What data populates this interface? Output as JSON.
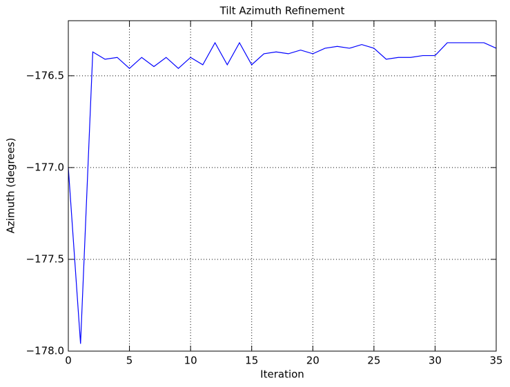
{
  "chart_data": {
    "type": "line",
    "title": "Tilt Azimuth Refinement",
    "xlabel": "Iteration",
    "ylabel": "Azimuth (degrees)",
    "x": [
      0,
      1,
      2,
      3,
      4,
      5,
      6,
      7,
      8,
      9,
      10,
      11,
      12,
      13,
      14,
      15,
      16,
      17,
      18,
      19,
      20,
      21,
      22,
      23,
      24,
      25,
      26,
      27,
      28,
      29,
      30,
      31,
      32,
      33,
      34,
      35
    ],
    "series": [
      {
        "name": "Azimuth",
        "color": "#0000ff",
        "values": [
          -177.0,
          -177.96,
          -176.37,
          -176.41,
          -176.4,
          -176.46,
          -176.4,
          -176.45,
          -176.4,
          -176.46,
          -176.4,
          -176.44,
          -176.32,
          -176.44,
          -176.32,
          -176.44,
          -176.38,
          -176.37,
          -176.38,
          -176.36,
          -176.38,
          -176.35,
          -176.34,
          -176.35,
          -176.33,
          -176.35,
          -176.41,
          -176.4,
          -176.4,
          -176.39,
          -176.39,
          -176.32,
          -176.32,
          -176.32,
          -176.32,
          -176.35
        ]
      }
    ],
    "xlim": [
      0,
      35
    ],
    "xticks": [
      0,
      5,
      10,
      15,
      20,
      25,
      30,
      35
    ],
    "ylim": [
      -178.0,
      -176.2
    ],
    "yticks": [
      {
        "value": -178.0,
        "label": "−178.0"
      },
      {
        "value": -177.5,
        "label": "−177.5"
      },
      {
        "value": -177.0,
        "label": "−177.0"
      },
      {
        "value": -176.5,
        "label": "−176.5"
      }
    ],
    "grid": true
  }
}
